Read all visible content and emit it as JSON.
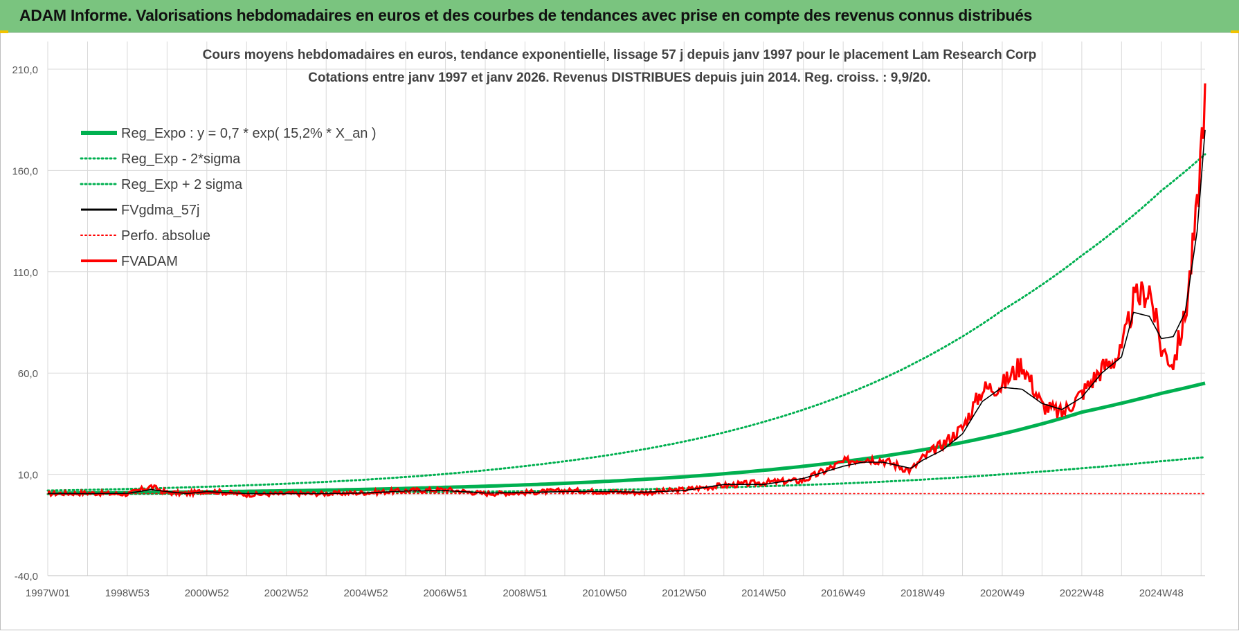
{
  "banner": {
    "title": "ADAM Informe. Valorisations hebdomadaires en euros et des courbes de tendances avec prise en compte des revenus connus distribués"
  },
  "colors": {
    "banner_bg": "#7ac47f",
    "reg_expo": "#00b050",
    "black_line": "#000000",
    "red_line": "#ff0000",
    "grid": "#d9d9d9"
  },
  "chart_data": {
    "type": "line",
    "title": "Cours moyens hebdomadaires en euros, tendance exponentielle, lissage 57 j depuis janv 1997 pour le placement Lam Research Corp",
    "subtitle": "Cotations entre janv 1997 et janv 2026. Revenus DISTRIBUES depuis juin 2014. Reg. croiss. : 9,9/20.",
    "ylim": [
      -40,
      210
    ],
    "yticks": [
      "210,0",
      "160,0",
      "110,0",
      "60,0",
      "10,0",
      "-40,0"
    ],
    "ytick_values": [
      210,
      160,
      110,
      60,
      10,
      -40
    ],
    "x_range": [
      1997.0,
      2026.1
    ],
    "xticks": [
      "1997W01",
      "1998W53",
      "2000W52",
      "2002W52",
      "2004W52",
      "2006W51",
      "2008W51",
      "2010W50",
      "2012W50",
      "2014W50",
      "2016W49",
      "2018W49",
      "2020W49",
      "2022W48",
      "2024W48"
    ],
    "xtick_years": [
      1997.0,
      1999.0,
      2001.0,
      2003.0,
      2005.0,
      2007.0,
      2009.0,
      2011.0,
      2013.0,
      2015.0,
      2017.0,
      2019.0,
      2021.0,
      2023.0,
      2025.0
    ],
    "grid": true,
    "legend_placement": "top-left",
    "series": [
      {
        "name": "Reg_Expo : y = 0,7 * exp( 15,2% *  X_an )",
        "style": "thick-solid",
        "color": "#00b050",
        "x": [
          1997,
          1999,
          2001,
          2003,
          2005,
          2007,
          2009,
          2011,
          2013,
          2015,
          2017,
          2019,
          2021,
          2023,
          2025,
          2026.1
        ],
        "y": [
          0.7,
          1.0,
          1.4,
          1.9,
          2.6,
          3.6,
          4.8,
          6.5,
          8.8,
          12.0,
          16.3,
          22.1,
          30.0,
          40.7,
          50.0,
          55.0
        ]
      },
      {
        "name": "Reg_Exp - 2*sigma",
        "style": "dotted",
        "color": "#00b050",
        "x": [
          1997,
          2001,
          2005,
          2009,
          2013,
          2017,
          2021,
          2023,
          2025,
          2026.1
        ],
        "y": [
          0.3,
          0.5,
          1.0,
          1.7,
          3.1,
          5.5,
          10.0,
          13.0,
          16.5,
          18.5
        ]
      },
      {
        "name": "Reg_Exp + 2 sigma",
        "style": "dotted",
        "color": "#00b050",
        "x": [
          1997,
          1999,
          2001,
          2003,
          2005,
          2007,
          2009,
          2011,
          2013,
          2015,
          2017,
          2019,
          2021,
          2023,
          2025,
          2026.1
        ],
        "y": [
          2.0,
          2.8,
          3.9,
          5.4,
          7.4,
          10.2,
          14.1,
          19.2,
          26.2,
          35.9,
          49.0,
          67.0,
          91.0,
          118.0,
          150.0,
          168.0
        ]
      },
      {
        "name": "FVgdma_57j",
        "style": "solid",
        "color": "#000000",
        "x": [
          1997,
          1998,
          1999,
          1999.6,
          2000.0,
          2000.5,
          2001,
          2002,
          2003,
          2004,
          2005,
          2006,
          2007,
          2008,
          2009,
          2010,
          2011,
          2012,
          2013,
          2014,
          2015,
          2016,
          2017,
          2017.5,
          2018,
          2018.7,
          2019,
          2019.5,
          2020,
          2020.5,
          2021,
          2021.5,
          2022,
          2022.5,
          2023,
          2023.5,
          2024,
          2024.3,
          2024.7,
          2025.0,
          2025.3,
          2025.6,
          2025.9,
          2026.1
        ],
        "y": [
          0.5,
          0.5,
          0.6,
          2.5,
          1.5,
          0.5,
          1.5,
          0.5,
          0.5,
          0.5,
          0.8,
          1.8,
          2.0,
          0.8,
          1.0,
          1.5,
          1.5,
          1.2,
          2.0,
          5.0,
          5.0,
          8.0,
          14.0,
          16.0,
          16.0,
          13.0,
          17.0,
          22.0,
          30.0,
          46.0,
          53.0,
          52.0,
          45.0,
          42.0,
          48.0,
          60.0,
          68.0,
          90.0,
          88.0,
          77.0,
          78.0,
          90.0,
          130.0,
          180.0
        ]
      },
      {
        "name": "Perfo. absolue",
        "style": "dotted",
        "color": "#ff0000",
        "x": [
          1997,
          2026.1
        ],
        "y": [
          0.5,
          0.5
        ]
      },
      {
        "name": "FVADAM",
        "style": "thick-solid",
        "color": "#ff0000",
        "x": [
          1997,
          1998,
          1999,
          1999.6,
          2000.0,
          2000.5,
          2001,
          2002,
          2003,
          2004,
          2005,
          2006,
          2007,
          2008,
          2009,
          2010,
          2011,
          2012,
          2013,
          2014,
          2015,
          2016,
          2017,
          2017.5,
          2018,
          2018.7,
          2019,
          2019.5,
          2020,
          2020.5,
          2021,
          2021.5,
          2022,
          2022.5,
          2023,
          2023.5,
          2024,
          2024.3,
          2024.7,
          2025.0,
          2025.3,
          2025.6,
          2025.9,
          2026.1
        ],
        "y": [
          0.5,
          0.8,
          0.3,
          4.0,
          1.0,
          0.5,
          2.0,
          0.0,
          0.5,
          0.5,
          1.0,
          2.0,
          2.5,
          0.5,
          1.0,
          2.0,
          1.5,
          1.0,
          2.5,
          4.5,
          6.0,
          7.0,
          16.0,
          18.0,
          17.0,
          12.0,
          18.0,
          25.0,
          33.0,
          52.0,
          54.0,
          65.0,
          44.0,
          40.0,
          50.0,
          62.0,
          70.0,
          95.0,
          102.0,
          72.0,
          65.0,
          88.0,
          140.0,
          203.0
        ]
      }
    ]
  }
}
